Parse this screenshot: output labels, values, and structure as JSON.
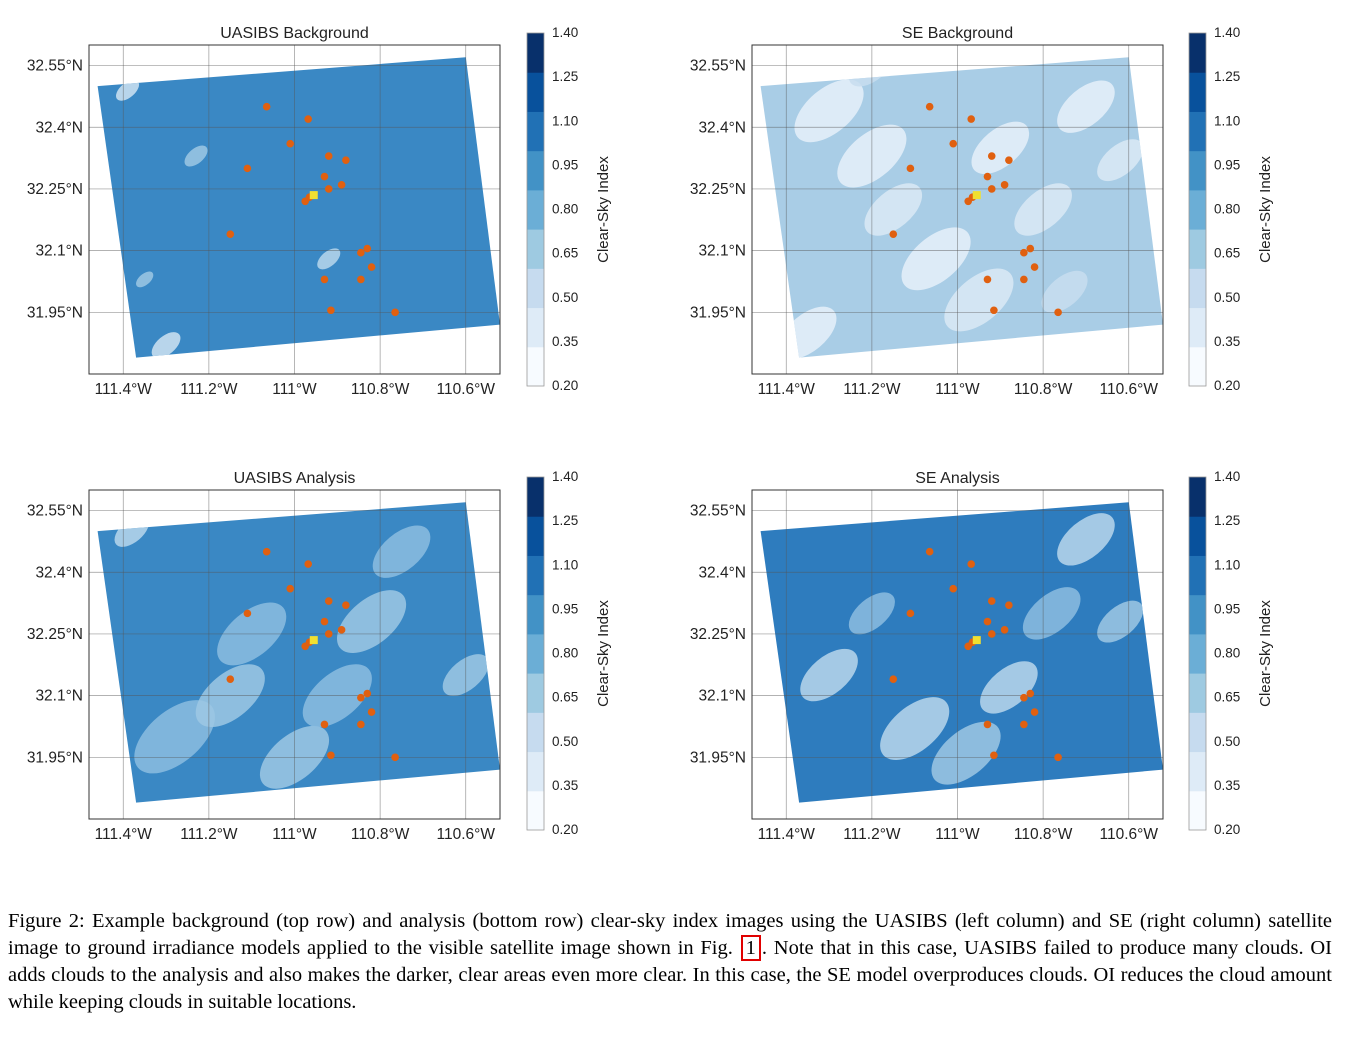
{
  "panels": [
    {
      "title": "UASIBS Background",
      "base_color": "#3a88c4",
      "clouds": [
        {
          "lon": -111.39,
          "lat": 32.49,
          "r": 0.02,
          "shade": "#cfe3f2"
        },
        {
          "lon": -111.23,
          "lat": 32.33,
          "r": 0.02,
          "shade": "#9ec8e4"
        },
        {
          "lon": -110.92,
          "lat": 32.08,
          "r": 0.02,
          "shade": "#b9d7ec"
        },
        {
          "lon": -111.3,
          "lat": 31.87,
          "r": 0.025,
          "shade": "#cfe3f2"
        },
        {
          "lon": -111.35,
          "lat": 32.03,
          "r": 0.015,
          "shade": "#9ec8e4"
        }
      ]
    },
    {
      "title": "SE Background",
      "base_color": "#a9cde6",
      "clouds": [
        {
          "lon": -111.3,
          "lat": 32.44,
          "r": 0.06,
          "shade": "#e6f0f9"
        },
        {
          "lon": -111.2,
          "lat": 32.33,
          "r": 0.06,
          "shade": "#e6f0f9"
        },
        {
          "lon": -111.15,
          "lat": 32.2,
          "r": 0.05,
          "shade": "#dbe9f5"
        },
        {
          "lon": -111.05,
          "lat": 32.08,
          "r": 0.06,
          "shade": "#e6f0f9"
        },
        {
          "lon": -110.95,
          "lat": 31.98,
          "r": 0.06,
          "shade": "#dbe9f5"
        },
        {
          "lon": -110.9,
          "lat": 32.35,
          "r": 0.05,
          "shade": "#e6f0f9"
        },
        {
          "lon": -110.8,
          "lat": 32.2,
          "r": 0.05,
          "shade": "#dbe9f5"
        },
        {
          "lon": -110.7,
          "lat": 32.45,
          "r": 0.05,
          "shade": "#e6f0f9"
        },
        {
          "lon": -110.62,
          "lat": 32.32,
          "r": 0.04,
          "shade": "#dbe9f5"
        },
        {
          "lon": -111.35,
          "lat": 31.9,
          "r": 0.05,
          "shade": "#e6f0f9"
        },
        {
          "lon": -111.2,
          "lat": 32.55,
          "r": 0.04,
          "shade": "#c8ddef"
        },
        {
          "lon": -110.75,
          "lat": 32.0,
          "r": 0.04,
          "shade": "#c8ddef"
        }
      ]
    },
    {
      "title": "UASIBS Analysis",
      "base_color": "#3a88c4",
      "clouds": [
        {
          "lon": -111.28,
          "lat": 32.0,
          "r": 0.07,
          "shade": "#8cbde0"
        },
        {
          "lon": -111.15,
          "lat": 32.1,
          "r": 0.06,
          "shade": "#9ec8e4"
        },
        {
          "lon": -111.1,
          "lat": 32.25,
          "r": 0.06,
          "shade": "#8cbde0"
        },
        {
          "lon": -111.0,
          "lat": 31.95,
          "r": 0.06,
          "shade": "#9ec8e4"
        },
        {
          "lon": -110.9,
          "lat": 32.1,
          "r": 0.06,
          "shade": "#8cbde0"
        },
        {
          "lon": -110.82,
          "lat": 32.28,
          "r": 0.06,
          "shade": "#9ec8e4"
        },
        {
          "lon": -110.75,
          "lat": 32.45,
          "r": 0.05,
          "shade": "#8cbde0"
        },
        {
          "lon": -110.6,
          "lat": 32.15,
          "r": 0.04,
          "shade": "#9ec8e4"
        },
        {
          "lon": -111.38,
          "lat": 32.5,
          "r": 0.03,
          "shade": "#b9d7ec"
        }
      ]
    },
    {
      "title": "SE Analysis",
      "base_color": "#2e7cbe",
      "clouds": [
        {
          "lon": -111.3,
          "lat": 32.15,
          "r": 0.05,
          "shade": "#b9d7ec"
        },
        {
          "lon": -111.2,
          "lat": 32.3,
          "r": 0.04,
          "shade": "#8cbde0"
        },
        {
          "lon": -111.1,
          "lat": 32.02,
          "r": 0.06,
          "shade": "#b9d7ec"
        },
        {
          "lon": -110.98,
          "lat": 31.96,
          "r": 0.06,
          "shade": "#9ec8e4"
        },
        {
          "lon": -110.88,
          "lat": 32.12,
          "r": 0.05,
          "shade": "#b9d7ec"
        },
        {
          "lon": -110.78,
          "lat": 32.3,
          "r": 0.05,
          "shade": "#8cbde0"
        },
        {
          "lon": -110.7,
          "lat": 32.48,
          "r": 0.05,
          "shade": "#b9d7ec"
        },
        {
          "lon": -110.62,
          "lat": 32.28,
          "r": 0.04,
          "shade": "#9ec8e4"
        }
      ]
    }
  ],
  "chart_data": {
    "type": "scatter",
    "xlabel": "",
    "ylabel": "",
    "xlim": [
      -111.48,
      -110.52
    ],
    "ylim": [
      31.8,
      32.6
    ],
    "x_ticks": [
      -111.4,
      -111.2,
      -111.0,
      -110.8,
      -110.6
    ],
    "x_tick_labels": [
      "111.4°W",
      "111.2°W",
      "111°W",
      "110.8°W",
      "110.6°W"
    ],
    "y_ticks": [
      31.95,
      32.1,
      32.25,
      32.4,
      32.55
    ],
    "y_tick_labels": [
      "31.95°N",
      "32.1°N",
      "32.25°N",
      "32.4°N",
      "32.55°N"
    ],
    "grid": true,
    "footprint": [
      [
        -111.46,
        32.5
      ],
      [
        -110.6,
        32.57
      ],
      [
        -110.52,
        31.92
      ],
      [
        -111.37,
        31.84
      ]
    ],
    "stations": [
      {
        "lon": -111.065,
        "lat": 32.45
      },
      {
        "lon": -110.968,
        "lat": 32.42
      },
      {
        "lon": -111.01,
        "lat": 32.36
      },
      {
        "lon": -110.92,
        "lat": 32.33
      },
      {
        "lon": -110.88,
        "lat": 32.32
      },
      {
        "lon": -111.11,
        "lat": 32.3
      },
      {
        "lon": -110.93,
        "lat": 32.28
      },
      {
        "lon": -110.92,
        "lat": 32.25
      },
      {
        "lon": -110.89,
        "lat": 32.26
      },
      {
        "lon": -110.975,
        "lat": 32.22
      },
      {
        "lon": -110.965,
        "lat": 32.23
      },
      {
        "lon": -111.15,
        "lat": 32.14
      },
      {
        "lon": -110.83,
        "lat": 32.105
      },
      {
        "lon": -110.845,
        "lat": 32.095
      },
      {
        "lon": -110.82,
        "lat": 32.06
      },
      {
        "lon": -110.93,
        "lat": 32.03
      },
      {
        "lon": -110.845,
        "lat": 32.03
      },
      {
        "lon": -110.915,
        "lat": 31.955
      },
      {
        "lon": -110.765,
        "lat": 31.95
      }
    ],
    "target": {
      "lon": -110.955,
      "lat": 32.235
    },
    "station_color": "#e06010",
    "target_color": "#f0e030",
    "colorbar": {
      "label": "Clear-Sky Index",
      "min": 0.2,
      "max": 1.4,
      "ticks": [
        0.2,
        0.35,
        0.5,
        0.65,
        0.8,
        0.95,
        1.1,
        1.25,
        1.4
      ],
      "tick_labels": [
        "0.20",
        "0.35",
        "0.50",
        "0.65",
        "0.80",
        "0.95",
        "1.10",
        "1.25",
        "1.40"
      ],
      "colors": [
        "#f7fbff",
        "#deebf7",
        "#c6dbef",
        "#9ecae1",
        "#6baed6",
        "#4292c6",
        "#2171b5",
        "#08519c",
        "#08306b"
      ]
    }
  },
  "caption": {
    "text_before_ref": "Figure 2: Example background (top row) and analysis (bottom row) clear-sky index images using the UASIBS (left column) and SE (right column) satellite image to ground irradiance models applied to the visible satellite image shown in Fig.",
    "ref": "1",
    "text_after_ref": ". Note that in this case, UASIBS failed to produce many clouds. OI adds clouds to the analysis and also makes the darker, clear areas even more clear. In this case, the SE model overproduces clouds. OI reduces the cloud amount while keeping clouds in suitable locations."
  }
}
